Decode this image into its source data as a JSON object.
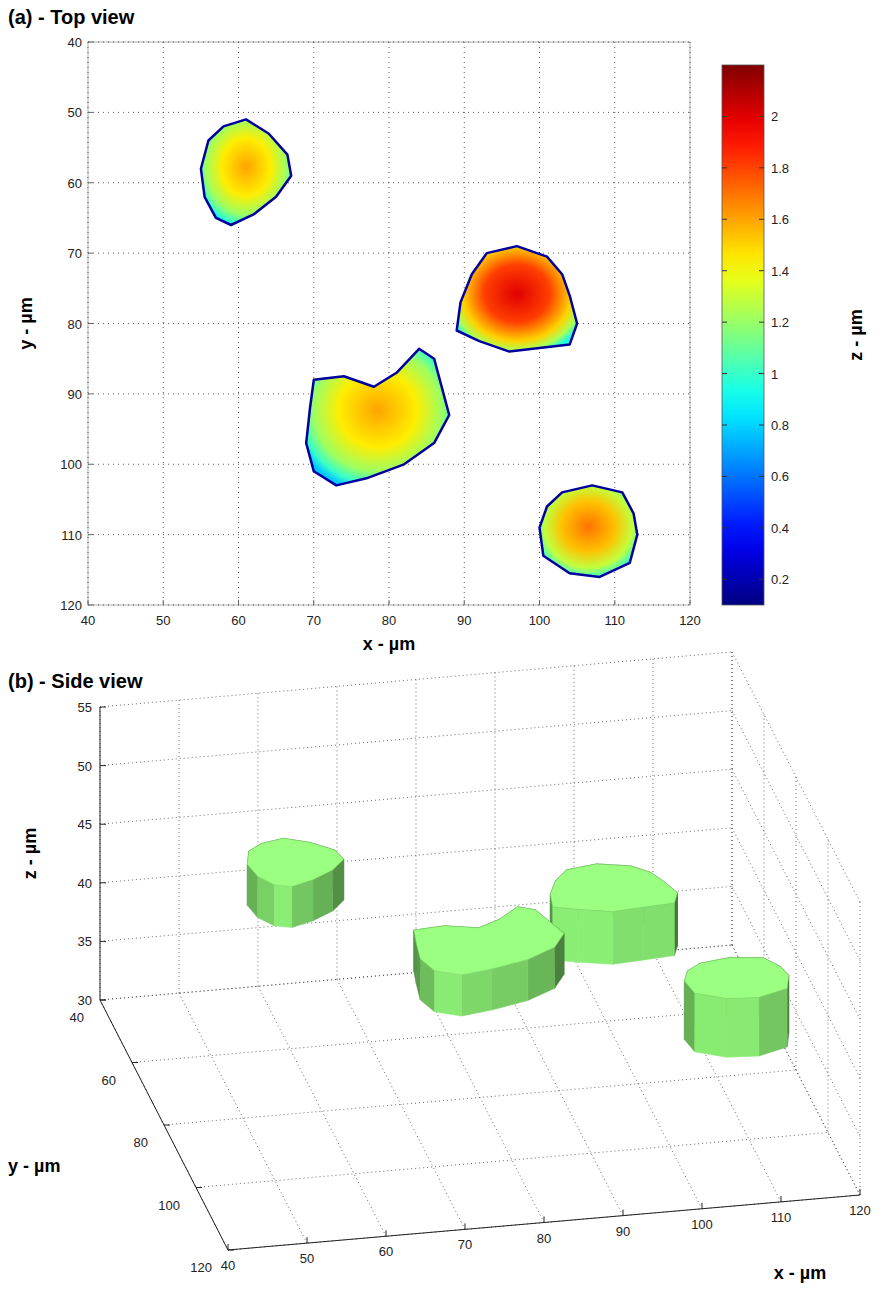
{
  "chart_data": [
    {
      "type": "top_view",
      "title": "(a) - Top view",
      "x_label": "x - µm",
      "y_label": "y - µm",
      "xlim": [
        40,
        120
      ],
      "xticks": [
        40,
        50,
        60,
        70,
        80,
        90,
        100,
        110,
        120
      ],
      "ylim": [
        120,
        40
      ],
      "yticks": [
        40,
        50,
        60,
        70,
        80,
        90,
        100,
        110,
        120
      ],
      "grid": true,
      "colorbar": {
        "label": "z - µm",
        "lim": [
          0.1,
          2.2
        ],
        "ticks": [
          0.2,
          0.4,
          0.6,
          0.8,
          1,
          1.2,
          1.4,
          1.6,
          1.8,
          2
        ]
      },
      "particles": [
        {
          "x": [
            58,
            61,
            64,
            66.5,
            67,
            65,
            62,
            59,
            57,
            55.5,
            55,
            56
          ],
          "y": [
            52,
            51,
            53,
            56,
            59,
            62,
            64.5,
            66,
            65,
            62,
            58,
            54
          ],
          "z_peak": 1.6
        },
        {
          "x": [
            93,
            97,
            101,
            103,
            104,
            105,
            104,
            100,
            96,
            92,
            89,
            89.5,
            91
          ],
          "y": [
            70,
            69,
            70.5,
            73,
            76,
            80,
            83,
            83.5,
            84,
            82.5,
            81,
            77,
            73
          ],
          "z_peak": 2
        },
        {
          "x": [
            70,
            74,
            78,
            81,
            84,
            86,
            87,
            88,
            86,
            82,
            77,
            73,
            70,
            69,
            69.5
          ],
          "y": [
            88,
            87.5,
            89,
            87,
            83.6,
            85,
            89,
            93,
            97,
            100,
            102,
            103,
            101,
            97,
            92
          ],
          "z_peak": 1.6
        },
        {
          "x": [
            103,
            107,
            111,
            112.5,
            113,
            112,
            108,
            104,
            100.5,
            100,
            101
          ],
          "y": [
            104,
            103,
            104,
            107,
            110,
            114,
            116,
            115.5,
            113,
            109,
            106
          ],
          "z_peak": 1.7
        }
      ]
    },
    {
      "type": "side_view_3d",
      "title": "(b) - Side view",
      "x_label": "x - µm",
      "y_label": "y - µm",
      "z_label": "z - µm",
      "xlim": [
        40,
        120
      ],
      "xticks": [
        40,
        50,
        60,
        70,
        80,
        90,
        100,
        110,
        120
      ],
      "ylim": [
        40,
        120
      ],
      "yticks": [
        40,
        60,
        80,
        100,
        120
      ],
      "zlim": [
        30,
        55
      ],
      "zticks": [
        30,
        35,
        40,
        45,
        50,
        55
      ],
      "grid": true,
      "color": "#8aee74",
      "particles": [
        {
          "x": [
            58,
            61,
            64,
            66.5,
            67,
            65,
            62,
            59,
            57,
            55.5,
            55,
            56
          ],
          "y": [
            52,
            51,
            53,
            56,
            59,
            62,
            64.5,
            66,
            65,
            62,
            58,
            54
          ],
          "z_base": 42,
          "z_top": 45.5
        },
        {
          "x": [
            93,
            97,
            101,
            103,
            104,
            105,
            104,
            100,
            96,
            92,
            89,
            89.5,
            91
          ],
          "y": [
            70,
            69,
            70.5,
            73,
            76,
            80,
            83,
            83.5,
            84,
            82.5,
            81,
            77,
            73
          ],
          "z_base": 41.5,
          "z_top": 46
        },
        {
          "x": [
            70,
            74,
            78,
            81,
            84,
            86,
            87,
            88,
            86,
            82,
            77,
            73,
            70,
            69,
            69.5
          ],
          "y": [
            88,
            87.5,
            89,
            87,
            83.6,
            85,
            89,
            93,
            97,
            100,
            102,
            103,
            101,
            97,
            92
          ],
          "z_base": 43.5,
          "z_top": 47
        },
        {
          "x": [
            103,
            107,
            111,
            112.5,
            113,
            112,
            108,
            104,
            100.5,
            100,
            101
          ],
          "y": [
            104,
            103,
            104,
            107,
            110,
            114,
            116,
            115.5,
            113,
            109,
            106
          ],
          "z_base": 41.5,
          "z_top": 46.5
        }
      ]
    }
  ]
}
